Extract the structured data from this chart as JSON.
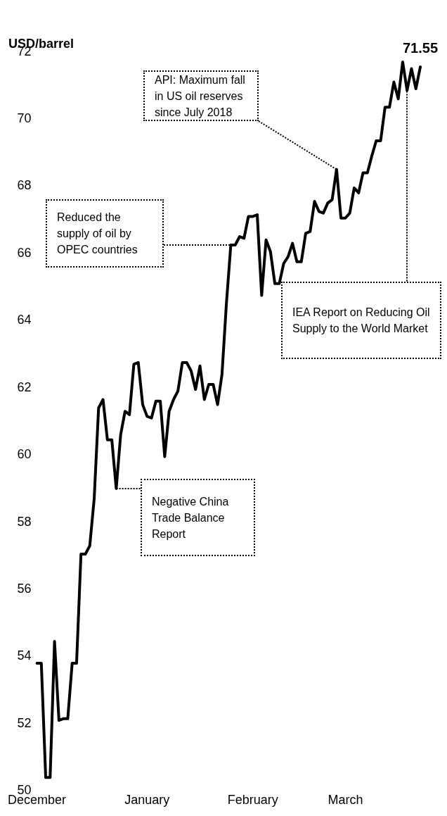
{
  "chart_data": {
    "type": "line",
    "ylabel": "USD/barrel",
    "categories": [
      "December",
      null,
      null,
      null,
      null,
      null,
      null,
      null,
      null,
      null,
      null,
      null,
      null,
      null,
      null,
      null,
      null,
      null,
      null,
      null,
      null,
      null,
      null,
      null,
      null,
      "January",
      null,
      null,
      null,
      null,
      null,
      null,
      null,
      null,
      null,
      null,
      null,
      null,
      null,
      null,
      null,
      null,
      null,
      null,
      null,
      null,
      null,
      null,
      null,
      "February",
      null,
      null,
      null,
      null,
      null,
      null,
      null,
      null,
      null,
      null,
      null,
      null,
      null,
      null,
      null,
      null,
      null,
      null,
      null,
      null,
      "March",
      null,
      null,
      null,
      null,
      null,
      null,
      null,
      null,
      null,
      null,
      null,
      null,
      null,
      null,
      null,
      null,
      null
    ],
    "series": [
      {
        "color": "#000000",
        "values": [
          53.8,
          53.8,
          50.4,
          50.4,
          54.45,
          52.1,
          52.15,
          52.15,
          53.8,
          53.8,
          57.05,
          57.05,
          57.3,
          58.7,
          61.4,
          61.65,
          60.45,
          60.45,
          59.0,
          60.6,
          61.3,
          61.2,
          62.7,
          62.75,
          61.5,
          61.15,
          61.1,
          61.6,
          61.6,
          59.95,
          61.3,
          61.65,
          61.9,
          62.75,
          62.75,
          62.5,
          61.95,
          62.65,
          61.65,
          62.1,
          62.1,
          61.5,
          62.4,
          64.5,
          66.25,
          66.25,
          66.5,
          66.45,
          67.1,
          67.1,
          67.15,
          64.75,
          66.4,
          66.05,
          65.1,
          65.1,
          65.7,
          65.9,
          66.3,
          65.75,
          65.75,
          66.6,
          66.65,
          67.55,
          67.25,
          67.2,
          67.5,
          67.6,
          68.5,
          67.05,
          67.05,
          67.2,
          67.95,
          67.8,
          68.4,
          68.4,
          68.9,
          69.35,
          69.35,
          70.35,
          70.35,
          71.1,
          70.6,
          71.7,
          70.85,
          71.5,
          70.9,
          71.55
        ],
        "value_labels": [
          null,
          null,
          null,
          null,
          null,
          null,
          null,
          null,
          null,
          null,
          null,
          null,
          null,
          null,
          null,
          null,
          null,
          null,
          null,
          null,
          null,
          null,
          null,
          null,
          null,
          null,
          null,
          null,
          null,
          null,
          null,
          null,
          null,
          null,
          null,
          null,
          null,
          null,
          null,
          null,
          null,
          null,
          null,
          null,
          null,
          null,
          null,
          null,
          null,
          null,
          null,
          null,
          null,
          null,
          null,
          null,
          null,
          null,
          null,
          null,
          null,
          null,
          null,
          null,
          null,
          null,
          null,
          null,
          null,
          null,
          null,
          null,
          null,
          null,
          null,
          null,
          null,
          null,
          null,
          null,
          null,
          null,
          null,
          null,
          null,
          null,
          null,
          "71.55"
        ]
      }
    ],
    "ylim": [
      50,
      72
    ],
    "yticks": [
      50,
      52,
      54,
      56,
      58,
      60,
      62,
      64,
      66,
      68,
      70,
      72
    ],
    "grid": false,
    "marker": "none",
    "line_style": "solid",
    "annotations": [
      "API: Maximum fall in US oil reserves since July 2018",
      "Reduced the supply of oil by OPEC countries",
      "Negative China Trade Balance Report",
      "IEA Report on Reducing Oil Supply to the World Market"
    ]
  }
}
